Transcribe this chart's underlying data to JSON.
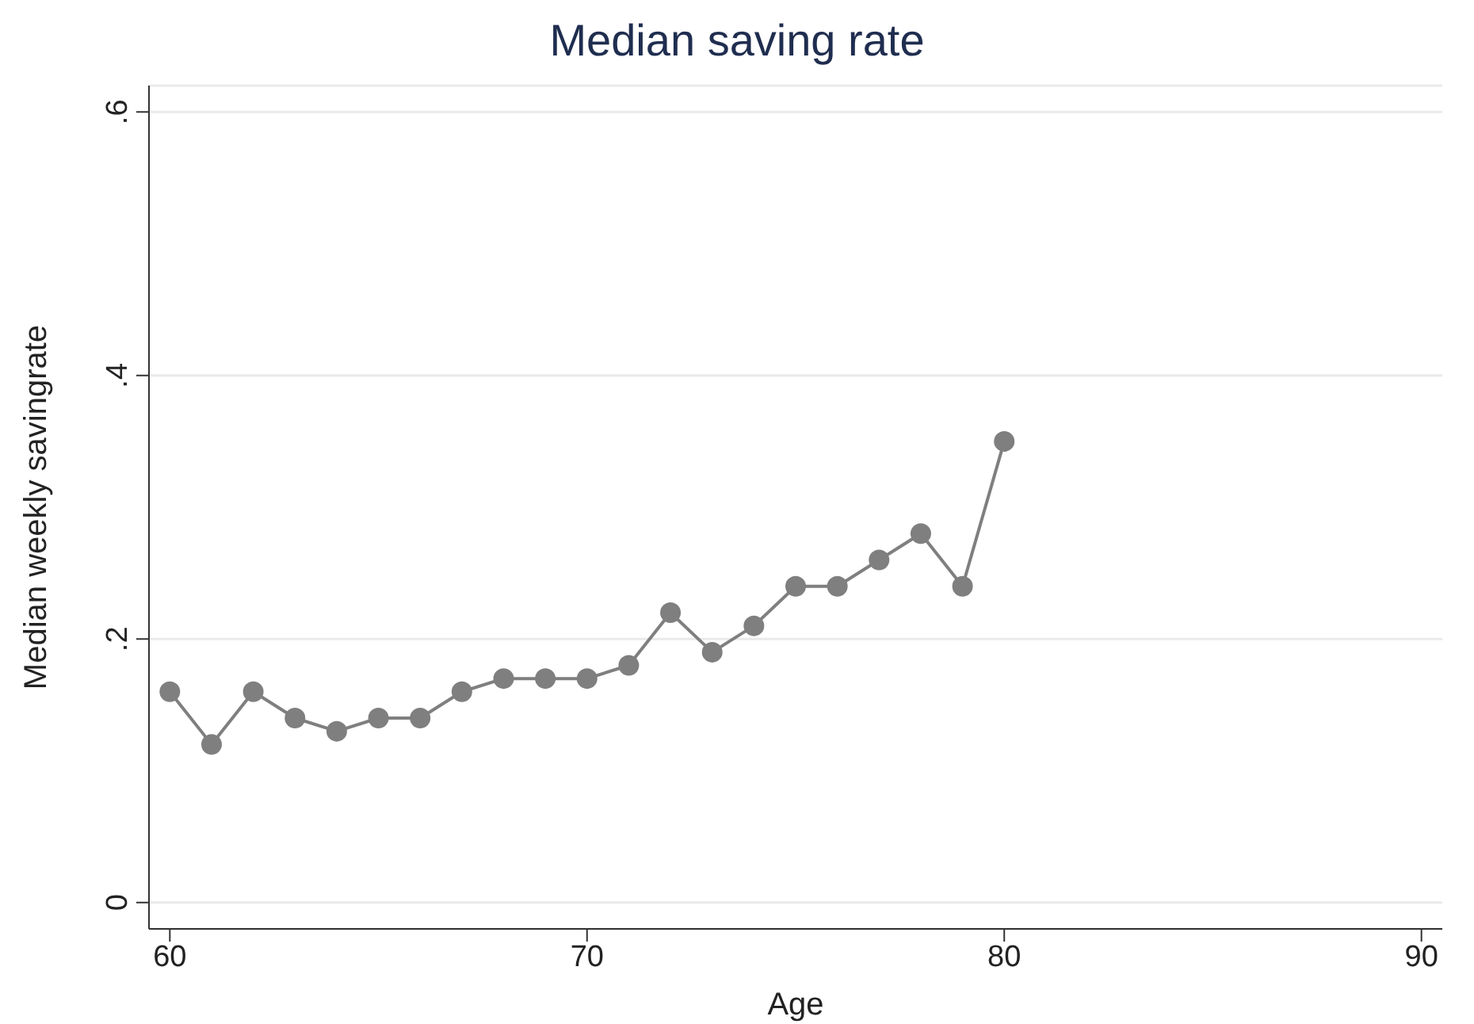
{
  "chart_data": {
    "type": "line",
    "title": "Median saving rate",
    "xlabel": "Age",
    "ylabel": "Median weekly savingrate",
    "x": [
      60,
      61,
      62,
      63,
      64,
      65,
      66,
      67,
      68,
      69,
      70,
      71,
      72,
      73,
      74,
      75,
      76,
      77,
      78,
      79,
      80
    ],
    "series": [
      {
        "color": "#7f7f7f",
        "values": [
          0.16,
          0.12,
          0.16,
          0.14,
          0.13,
          0.14,
          0.14,
          0.16,
          0.17,
          0.17,
          0.17,
          0.18,
          0.22,
          0.19,
          0.21,
          0.24,
          0.24,
          0.26,
          0.28,
          0.24,
          0.35
        ]
      }
    ],
    "xlim": [
      59.5,
      90.5
    ],
    "xticks": [
      60,
      70,
      80,
      90
    ],
    "ylim": [
      -0.02,
      0.62
    ],
    "yticks": [
      0,
      {
        "value": 0.2,
        "label": ".2"
      },
      {
        "value": 0.4,
        "label": ".4"
      },
      {
        "value": 0.6,
        "label": ".6"
      }
    ],
    "grid": "y",
    "marker": "circle",
    "line_style": "solid",
    "legend": false
  }
}
